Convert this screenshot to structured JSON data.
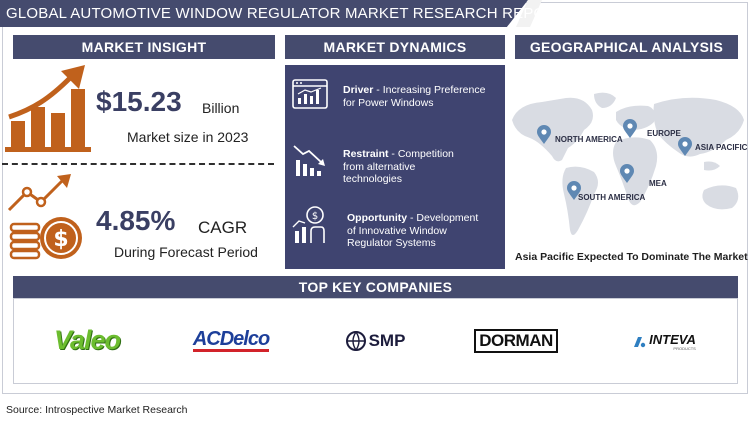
{
  "header": {
    "title": "GLOBAL AUTOMOTIVE WINDOW REGULATOR MARKET RESEARCH REPORT"
  },
  "insight": {
    "title": "MARKET INSIGHT",
    "market_value": "$15.23",
    "market_unit": "Billion",
    "market_caption": "Market size in 2023",
    "cagr_value": "4.85%",
    "cagr_label": "CAGR",
    "cagr_caption": "During Forecast Period"
  },
  "dynamics": {
    "title": "MARKET DYNAMICS",
    "items": [
      {
        "label": "Driver",
        "line1": " - Increasing Preference",
        "line2": "for Power Windows",
        "line3": ""
      },
      {
        "label": "Restraint",
        "line1": " - Competition",
        "line2": "from alternative",
        "line3": "technologies"
      },
      {
        "label": "Opportunity",
        "line1": " - Development",
        "line2": "of Innovative Window",
        "line3": "Regulator Systems"
      }
    ]
  },
  "geo": {
    "title": "GEOGRAPHICAL ANALYSIS",
    "regions": [
      "NORTH AMERICA",
      "EUROPE",
      "ASIA PACIFIC",
      "MEA",
      "SOUTH AMERICA"
    ],
    "caption": "Asia Pacific Expected To Dominate The Market"
  },
  "companies": {
    "title": "TOP KEY COMPANIES",
    "logos": [
      "Valeo",
      "ACDelco",
      "SMP",
      "DORMAN",
      "INTEVA"
    ],
    "inteva_sub": "PRODUCTS"
  },
  "footer": {
    "source": "Source: Introspective Market Research"
  },
  "colors": {
    "navy": "#454b6e",
    "panel": "#3f4470",
    "orange": "#c0611c",
    "pin": "#5f88b3"
  }
}
